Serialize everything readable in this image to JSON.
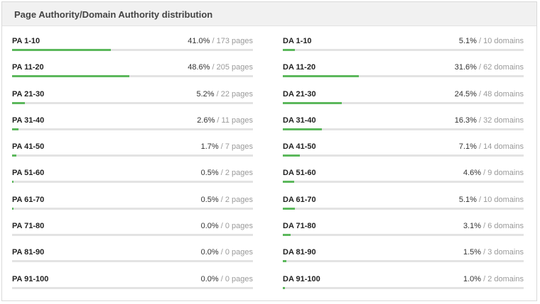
{
  "panel": {
    "title": "Page Authority/Domain Authority distribution"
  },
  "colors": {
    "bar_fill": "#5cb85c",
    "bar_track": "#e3e3e3",
    "header_bg": "#f1f1f1"
  },
  "pa": [
    {
      "label": "PA 1-10",
      "percent_text": "41.0%",
      "count_text": "173 pages",
      "fraction": 0.41
    },
    {
      "label": "PA 11-20",
      "percent_text": "48.6%",
      "count_text": "205 pages",
      "fraction": 0.486
    },
    {
      "label": "PA 21-30",
      "percent_text": "5.2%",
      "count_text": "22 pages",
      "fraction": 0.052
    },
    {
      "label": "PA 31-40",
      "percent_text": "2.6%",
      "count_text": "11 pages",
      "fraction": 0.026
    },
    {
      "label": "PA 41-50",
      "percent_text": "1.7%",
      "count_text": "7 pages",
      "fraction": 0.017
    },
    {
      "label": "PA 51-60",
      "percent_text": "0.5%",
      "count_text": "2 pages",
      "fraction": 0.005
    },
    {
      "label": "PA 61-70",
      "percent_text": "0.5%",
      "count_text": "2 pages",
      "fraction": 0.005
    },
    {
      "label": "PA 71-80",
      "percent_text": "0.0%",
      "count_text": "0 pages",
      "fraction": 0.0
    },
    {
      "label": "PA 81-90",
      "percent_text": "0.0%",
      "count_text": "0 pages",
      "fraction": 0.0
    },
    {
      "label": "PA 91-100",
      "percent_text": "0.0%",
      "count_text": "0 pages",
      "fraction": 0.0
    }
  ],
  "da": [
    {
      "label": "DA 1-10",
      "percent_text": "5.1%",
      "count_text": "10 domains",
      "fraction": 0.051
    },
    {
      "label": "DA 11-20",
      "percent_text": "31.6%",
      "count_text": "62 domains",
      "fraction": 0.316
    },
    {
      "label": "DA 21-30",
      "percent_text": "24.5%",
      "count_text": "48 domains",
      "fraction": 0.245
    },
    {
      "label": "DA 31-40",
      "percent_text": "16.3%",
      "count_text": "32 domains",
      "fraction": 0.163
    },
    {
      "label": "DA 41-50",
      "percent_text": "7.1%",
      "count_text": "14 domains",
      "fraction": 0.071
    },
    {
      "label": "DA 51-60",
      "percent_text": "4.6%",
      "count_text": "9 domains",
      "fraction": 0.046
    },
    {
      "label": "DA 61-70",
      "percent_text": "5.1%",
      "count_text": "10 domains",
      "fraction": 0.051
    },
    {
      "label": "DA 71-80",
      "percent_text": "3.1%",
      "count_text": "6 domains",
      "fraction": 0.031
    },
    {
      "label": "DA 81-90",
      "percent_text": "1.5%",
      "count_text": "3 domains",
      "fraction": 0.015
    },
    {
      "label": "DA 91-100",
      "percent_text": "1.0%",
      "count_text": "2 domains",
      "fraction": 0.01
    }
  ]
}
